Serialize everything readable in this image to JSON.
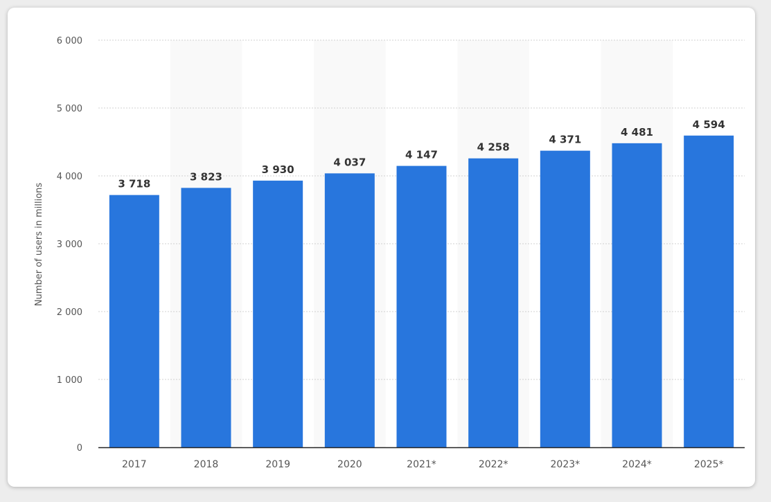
{
  "chart_data": {
    "type": "bar",
    "title": "",
    "xlabel": "",
    "ylabel": "Number of users in millions",
    "ylim": [
      0,
      6000
    ],
    "yticks": [
      0,
      1000,
      2000,
      3000,
      4000,
      5000,
      6000
    ],
    "ytick_labels": [
      "0",
      "1 000",
      "2 000",
      "3 000",
      "4 000",
      "5 000",
      "6 000"
    ],
    "categories": [
      "2017",
      "2018",
      "2019",
      "2020",
      "2021*",
      "2022*",
      "2023*",
      "2024*",
      "2025*"
    ],
    "values": [
      3718,
      3823,
      3930,
      4037,
      4147,
      4258,
      4371,
      4481,
      4594
    ],
    "value_labels": [
      "3 718",
      "3 823",
      "3 930",
      "4 037",
      "4 147",
      "4 258",
      "4 371",
      "4 481",
      "4 594"
    ],
    "grid": true,
    "legend": "none",
    "bar_color": "#2876dd",
    "alt_band_color": "#f9f9f9"
  }
}
